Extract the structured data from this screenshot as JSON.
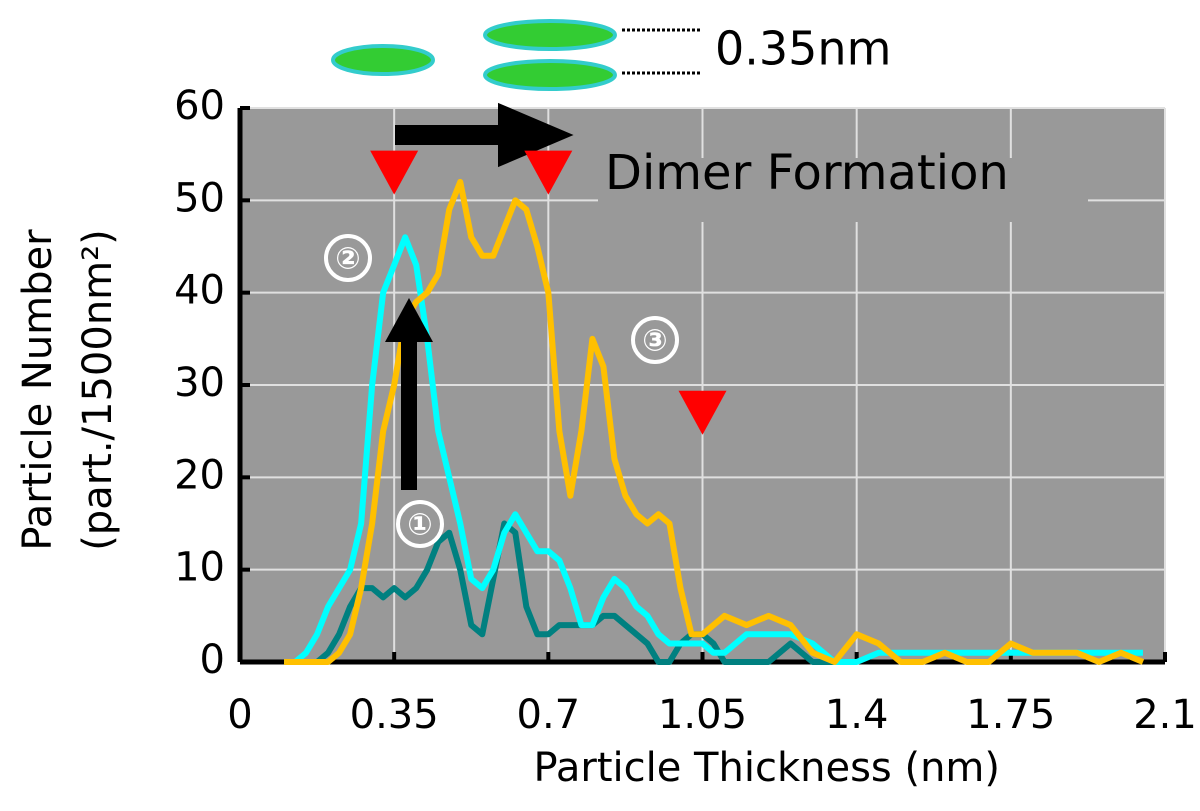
{
  "chart_data": {
    "type": "line",
    "xlabel": "Particle Thickness (nm)",
    "ylabel": [
      "Particle Number",
      "(part./1500nm²)"
    ],
    "annotations": [
      "0.35nm",
      "Dimer Formation"
    ],
    "xlim": [
      0,
      2.1
    ],
    "xticks": [
      0,
      0.35,
      0.7,
      1.05,
      1.4,
      1.75,
      2.1
    ],
    "ylim": [
      0,
      60
    ],
    "yticks": [
      0,
      10,
      20,
      30,
      40,
      50,
      60
    ],
    "grid": true,
    "background": "#999999",
    "markers": {
      "color": "#ff0000",
      "x": [
        0.35,
        0.7,
        1.05
      ],
      "y": [
        53,
        53,
        27
      ]
    },
    "x": [
      0.1,
      0.125,
      0.15,
      0.175,
      0.2,
      0.225,
      0.25,
      0.275,
      0.3,
      0.325,
      0.35,
      0.375,
      0.4,
      0.425,
      0.45,
      0.475,
      0.5,
      0.525,
      0.55,
      0.575,
      0.6,
      0.625,
      0.65,
      0.675,
      0.7,
      0.725,
      0.75,
      0.775,
      0.8,
      0.825,
      0.85,
      0.875,
      0.9,
      0.925,
      0.95,
      0.975,
      1.0,
      1.025,
      1.05,
      1.075,
      1.1,
      1.15,
      1.2,
      1.25,
      1.3,
      1.35,
      1.4,
      1.45,
      1.5,
      1.55,
      1.6,
      1.65,
      1.7,
      1.75,
      1.8,
      1.85,
      1.9,
      1.95,
      2.0,
      2.05
    ],
    "series": [
      {
        "name": "①",
        "color": "#008080",
        "values": [
          0,
          0,
          0,
          0,
          1,
          3,
          6,
          8,
          8,
          7,
          8,
          7,
          8,
          10,
          13,
          14,
          10,
          4,
          3,
          9,
          15,
          14,
          6,
          3,
          3,
          4,
          4,
          4,
          4,
          5,
          5,
          4,
          3,
          2,
          0,
          0,
          2,
          3,
          3,
          2,
          0,
          0,
          0,
          2,
          0,
          0,
          null,
          null,
          null,
          null,
          null,
          null,
          null,
          null,
          null,
          null,
          null,
          null,
          null,
          null
        ]
      },
      {
        "name": "②",
        "color": "#00ffff",
        "values": [
          0,
          0,
          1,
          3,
          6,
          8,
          10,
          15,
          30,
          40,
          43,
          46,
          43,
          35,
          25,
          20,
          15,
          9,
          8,
          10,
          14,
          16,
          14,
          12,
          12,
          11,
          8,
          4,
          4,
          7,
          9,
          8,
          6,
          5,
          3,
          2,
          2,
          2,
          2,
          1,
          1,
          3,
          3,
          3,
          2,
          0,
          0,
          1,
          1,
          1,
          1,
          1,
          1,
          1,
          1,
          1,
          1,
          1,
          1,
          1
        ]
      },
      {
        "name": "③",
        "color": "#ffc000",
        "values": [
          0,
          0,
          0,
          0,
          0,
          1,
          3,
          8,
          15,
          25,
          30,
          37,
          39,
          40,
          42,
          49,
          52,
          46,
          44,
          44,
          47,
          50,
          49,
          45,
          40,
          25,
          18,
          25,
          35,
          32,
          22,
          18,
          16,
          15,
          16,
          15,
          8,
          3,
          3,
          4,
          5,
          4,
          5,
          4,
          1,
          0,
          3,
          2,
          0,
          0,
          1,
          0,
          0,
          2,
          1,
          1,
          1,
          0,
          1,
          0
        ]
      }
    ]
  }
}
